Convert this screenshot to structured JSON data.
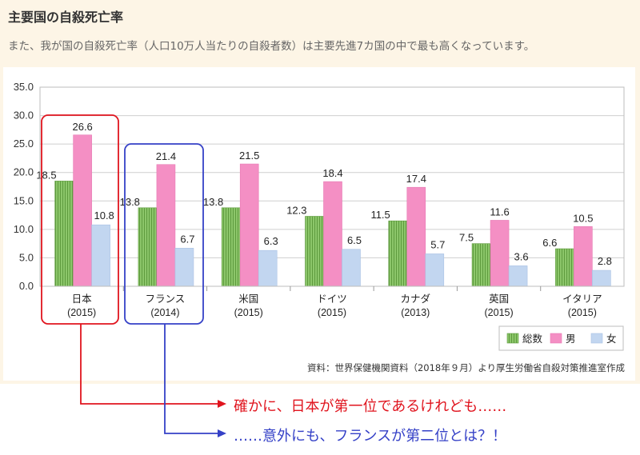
{
  "page": {
    "title": "主要国の自殺死亡率",
    "subtitle": "また、我が国の自殺死亡率（人口10万人当たりの自殺者数）は主要先進7カ国の中で最も高くなっています。",
    "source": "資料：世界保健機関資料（2018年９月）より厚生労働省自殺対策推進室作成"
  },
  "annotations": {
    "line1": "確かに、日本が第一位であるけれども……",
    "line2": "……意外にも、フランスが第二位とは？！"
  },
  "colors": {
    "total": "#8cc66a",
    "male": "#f48fc4",
    "female": "#c2d6f0",
    "highlight_red": "#e0141e",
    "highlight_blue": "#3541c7"
  },
  "chart_data": {
    "type": "bar",
    "title": "",
    "xlabel": "",
    "ylabel": "",
    "ylim": [
      0,
      35
    ],
    "yticks": [
      "0.0",
      "5.0",
      "10.0",
      "15.0",
      "20.0",
      "25.0",
      "30.0",
      "35.0"
    ],
    "categories": [
      "日本",
      "フランス",
      "米国",
      "ドイツ",
      "カナダ",
      "英国",
      "イタリア"
    ],
    "years": [
      "(2015)",
      "(2014)",
      "(2015)",
      "(2015)",
      "(2013)",
      "(2015)",
      "(2015)"
    ],
    "series": [
      {
        "name": "総数",
        "values": [
          18.5,
          13.8,
          13.8,
          12.3,
          11.5,
          7.5,
          6.6
        ],
        "labels": [
          "18.5",
          "13.8",
          "13.8",
          "12.3",
          "11.5",
          "7.5",
          "6.6"
        ]
      },
      {
        "name": "男",
        "values": [
          26.6,
          21.4,
          21.5,
          18.4,
          17.4,
          11.6,
          10.5
        ],
        "labels": [
          "26.6",
          "21.4",
          "21.5",
          "18.4",
          "17.4",
          "11.6",
          "10.5"
        ]
      },
      {
        "name": "女",
        "values": [
          10.8,
          6.7,
          6.3,
          6.5,
          5.7,
          3.6,
          2.8
        ],
        "labels": [
          "10.8",
          "6.7",
          "6.3",
          "6.5",
          "5.7",
          "3.6",
          "2.8"
        ]
      }
    ],
    "legend": "bottom-right",
    "grid": true
  }
}
